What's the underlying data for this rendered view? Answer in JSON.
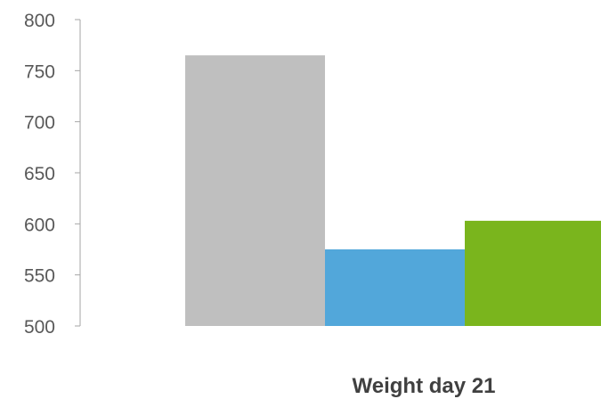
{
  "chart_data": {
    "type": "bar",
    "title": "",
    "xlabel": "",
    "ylabel": "",
    "categories": [
      "Weight day 21"
    ],
    "series": [
      {
        "values": [
          765
        ],
        "color": "#bfbfbf"
      },
      {
        "values": [
          575
        ],
        "color": "#52a7da"
      },
      {
        "values": [
          603
        ],
        "color": "#7ab51d"
      }
    ],
    "ylim": [
      500,
      800
    ],
    "yticks": [
      500,
      550,
      600,
      650,
      700,
      750,
      800
    ],
    "yticklabels": [
      "500",
      "550",
      "600",
      "650",
      "700",
      "750",
      "800"
    ],
    "grid": false,
    "legend": "none"
  }
}
